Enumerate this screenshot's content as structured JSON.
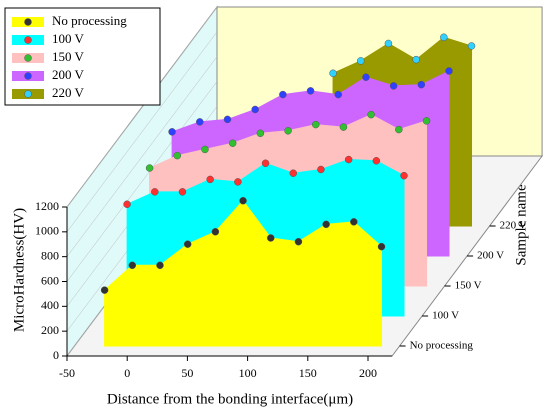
{
  "chart_data": {
    "type": "waterfall3d",
    "x": [
      -25,
      -2,
      21,
      44,
      67,
      90,
      113,
      136,
      159,
      182,
      205
    ],
    "xlabel": "Distance from the bonding interface(μm)",
    "ylabel": "MicroHardness(HV)",
    "zlabel": "Sample name",
    "xlim": [
      -50,
      220
    ],
    "xticks": [
      -50,
      0,
      50,
      100,
      150,
      200
    ],
    "ylim": [
      0,
      1200
    ],
    "yticks": [
      0,
      200,
      400,
      600,
      800,
      1000,
      1200
    ],
    "legend": "upper left",
    "series": [
      {
        "name": "No processing",
        "color": "#ffff00",
        "marker_color": "#333333",
        "values": [
          450,
          650,
          650,
          820,
          920,
          1170,
          870,
          840,
          980,
          1000,
          800
        ]
      },
      {
        "name": "100 V",
        "color": "#00ffff",
        "marker_color": "#ff3030",
        "values": [
          900,
          1000,
          1000,
          1100,
          1080,
          1230,
          1150,
          1180,
          1260,
          1250,
          1130
        ]
      },
      {
        "name": "150 V",
        "color": "#ffc0c0",
        "marker_color": "#30c030",
        "values": [
          950,
          1050,
          1100,
          1150,
          1230,
          1250,
          1300,
          1280,
          1380,
          1260,
          1330
        ]
      },
      {
        "name": "200 V",
        "color": "#cc66ff",
        "marker_color": "#3040ff",
        "values": [
          1000,
          1080,
          1100,
          1180,
          1300,
          1330,
          1300,
          1440,
          1370,
          1380,
          1490
        ]
      },
      {
        "name": "220 V",
        "color": "#999900",
        "marker_color": "#30d0ff",
        "values": [
          null,
          null,
          null,
          null,
          null,
          1230,
          1330,
          1470,
          1340,
          1520,
          1450
        ]
      }
    ]
  }
}
